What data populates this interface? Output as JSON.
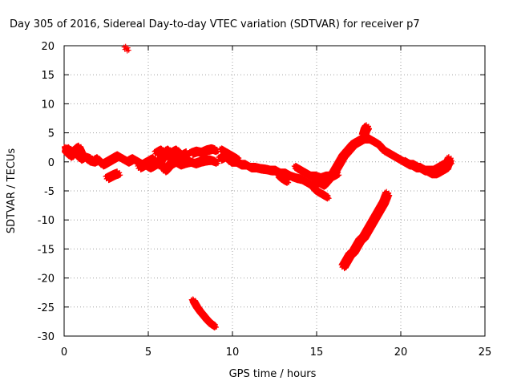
{
  "chart_data": {
    "type": "scatter",
    "title": "Day 305 of 2016, Sidereal Day-to-day VTEC variation (SDTVAR) for receiver p7",
    "xlabel": "GPS time / hours",
    "ylabel": "SDTVAR / TECUs",
    "xlim": [
      0,
      25
    ],
    "ylim": [
      -30,
      20
    ],
    "xticks": [
      "0",
      "5",
      "10",
      "15",
      "20",
      "25"
    ],
    "yticks": [
      "-30",
      "-25",
      "-20",
      "-15",
      "-10",
      "-5",
      "0",
      "5",
      "10",
      "15",
      "20"
    ],
    "grid": true,
    "marker": "plus",
    "color": "#ff0000",
    "series": [
      {
        "x": [
          0.0,
          0.2,
          0.4,
          0.6,
          0.8,
          1.0,
          1.2,
          1.5,
          1.8,
          2.0,
          2.3,
          2.6,
          2.9,
          3.2,
          3.5,
          3.8,
          4.1,
          4.4,
          4.7,
          5.0,
          5.3,
          5.6,
          5.9,
          6.2,
          6.5,
          6.8,
          7.0
        ],
        "y": [
          2.5,
          1.5,
          1.0,
          1.8,
          1.2,
          0.5,
          1.0,
          0.2,
          0.0,
          0.5,
          -0.5,
          0.0,
          0.5,
          1.0,
          0.5,
          0.0,
          0.5,
          0.0,
          -0.5,
          0.0,
          0.5,
          -0.5,
          1.0,
          2.0,
          1.0,
          0.5,
          0.0
        ]
      },
      {
        "x": [
          0.1,
          0.3,
          0.5,
          0.7,
          0.9,
          1.1,
          1.3,
          1.6
        ],
        "y": [
          1.8,
          2.2,
          1.5,
          2.0,
          2.5,
          1.2,
          0.8,
          0.5
        ]
      },
      {
        "x": [
          2.6,
          2.8,
          3.0,
          3.2
        ],
        "y": [
          -2.8,
          -2.5,
          -2.2,
          -2.0
        ]
      },
      {
        "x": [
          3.7
        ],
        "y": [
          19.5
        ]
      },
      {
        "x": [
          4.5,
          4.8,
          5.1,
          5.4,
          5.7,
          6.0,
          6.3,
          6.6,
          6.9,
          7.2,
          7.5,
          7.8,
          8.1,
          8.4,
          8.7,
          9.0
        ],
        "y": [
          -1.0,
          -0.5,
          -1.0,
          -0.5,
          0.0,
          -1.5,
          -0.5,
          0.0,
          -0.5,
          -0.2,
          0.0,
          -0.3,
          0.0,
          0.2,
          0.3,
          0.0
        ]
      },
      {
        "x": [
          5.5,
          5.8,
          6.1,
          6.4,
          6.7,
          7.0,
          7.3
        ],
        "y": [
          1.5,
          2.0,
          1.0,
          1.5,
          2.0,
          1.0,
          1.5
        ]
      },
      {
        "x": [
          7.6,
          7.9,
          8.2,
          8.5,
          8.8,
          9.0
        ],
        "y": [
          1.5,
          1.8,
          1.6,
          2.0,
          2.2,
          2.0
        ]
      },
      {
        "x": [
          7.7,
          7.9,
          8.1,
          8.3,
          8.5,
          8.7,
          8.9
        ],
        "y": [
          -24.0,
          -25.0,
          -25.8,
          -26.5,
          -27.2,
          -27.8,
          -28.2
        ]
      },
      {
        "x": [
          9.3,
          9.6,
          9.9,
          10.2,
          10.5,
          10.8,
          11.1,
          11.4,
          11.7,
          12.0,
          12.3,
          12.6,
          12.9,
          13.2,
          13.5,
          13.8,
          14.1,
          14.4,
          14.7,
          15.0,
          15.3,
          15.6
        ],
        "y": [
          0.5,
          1.0,
          0.0,
          0.0,
          -0.5,
          -0.5,
          -1.0,
          -1.0,
          -1.2,
          -1.3,
          -1.5,
          -1.5,
          -2.0,
          -2.0,
          -2.5,
          -2.8,
          -3.0,
          -3.5,
          -4.0,
          -5.0,
          -5.5,
          -6.0
        ]
      },
      {
        "x": [
          9.4,
          9.7,
          10.0,
          10.3
        ],
        "y": [
          2.0,
          1.5,
          1.0,
          0.5
        ]
      },
      {
        "x": [
          12.8,
          13.0,
          13.2
        ],
        "y": [
          -2.5,
          -3.0,
          -3.3
        ]
      },
      {
        "x": [
          13.8,
          14.1,
          14.4,
          14.7,
          15.0,
          15.3,
          15.6,
          15.9,
          16.2
        ],
        "y": [
          -1.0,
          -1.5,
          -2.0,
          -2.5,
          -2.5,
          -2.8,
          -2.5,
          -2.5,
          -2.0
        ]
      },
      {
        "x": [
          14.8,
          15.1,
          15.4,
          15.7,
          16.0,
          16.3,
          16.6,
          16.9,
          17.2,
          17.5,
          17.8,
          18.1,
          18.4,
          18.7,
          19.0
        ],
        "y": [
          -4.0,
          -3.5,
          -4.0,
          -3.0,
          -2.0,
          -0.5,
          1.0,
          2.0,
          3.0,
          3.5,
          4.0,
          4.0,
          3.5,
          3.0,
          2.0
        ]
      },
      {
        "x": [
          17.8,
          17.9,
          18.0
        ],
        "y": [
          4.5,
          5.5,
          6.0
        ]
      },
      {
        "x": [
          16.6,
          16.8,
          17.0,
          17.2,
          17.4,
          17.6,
          17.8,
          18.0,
          18.2,
          18.4,
          18.6,
          18.8,
          19.0,
          19.2
        ],
        "y": [
          -18.0,
          -17.0,
          -16.0,
          -15.5,
          -14.5,
          -13.5,
          -13.0,
          -12.0,
          -11.0,
          -10.0,
          -9.0,
          -8.0,
          -7.0,
          -5.5
        ]
      },
      {
        "x": [
          19.0,
          19.3,
          19.6,
          19.9,
          20.2,
          20.5,
          20.8,
          21.1,
          21.4,
          21.7,
          22.0,
          22.3,
          22.6,
          22.9
        ],
        "y": [
          2.0,
          1.5,
          1.0,
          0.5,
          0.0,
          -0.5,
          -0.5,
          -1.0,
          -1.5,
          -1.5,
          -1.5,
          -1.0,
          -0.5,
          0.0
        ]
      },
      {
        "x": [
          20.3,
          20.6,
          20.9,
          21.2,
          21.5,
          21.8,
          22.1,
          22.4,
          22.7,
          22.9
        ],
        "y": [
          0.0,
          -0.5,
          -1.0,
          -1.0,
          -1.5,
          -2.0,
          -2.0,
          -1.5,
          -1.0,
          0.5
        ]
      }
    ]
  }
}
